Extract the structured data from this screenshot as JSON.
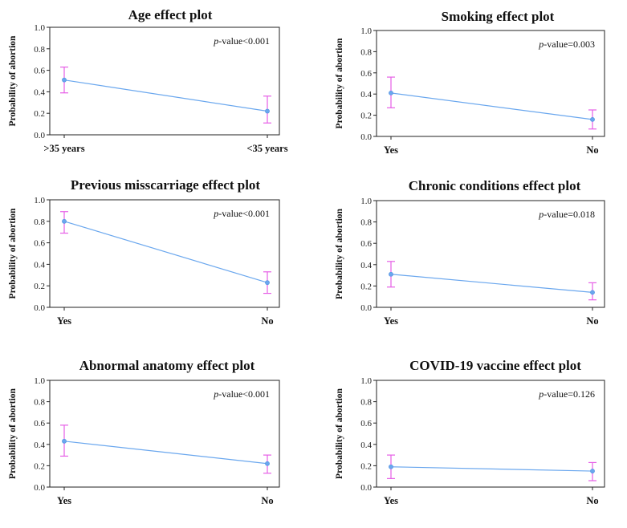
{
  "chart_data": [
    {
      "type": "line",
      "title": "Age effect plot",
      "ylabel": "Probability of abortion",
      "categories": [
        ">35 years",
        "<35 years"
      ],
      "values": [
        0.51,
        0.22
      ],
      "ci_lower": [
        0.39,
        0.11
      ],
      "ci_upper": [
        0.63,
        0.36
      ],
      "ylim": [
        0,
        1.0
      ],
      "yticks": [
        "0.0",
        "0.2",
        "0.4",
        "0.6",
        "0.8",
        "1.0"
      ],
      "pvalue_label": "p",
      "pvalue_text": "-value<0.001",
      "grid": false,
      "line_color": "#6aa7ee",
      "errorbar_color": "#e65ee6"
    },
    {
      "type": "line",
      "title": "Smoking effect plot",
      "ylabel": "Probability of abortion",
      "categories": [
        "Yes",
        "No"
      ],
      "values": [
        0.41,
        0.16
      ],
      "ci_lower": [
        0.27,
        0.07
      ],
      "ci_upper": [
        0.56,
        0.25
      ],
      "ylim": [
        0,
        1.0
      ],
      "yticks": [
        "0.0",
        "0.2",
        "0.4",
        "0.6",
        "0.8",
        "1.0"
      ],
      "pvalue_label": "p",
      "pvalue_text": "-value=0.003",
      "grid": false,
      "line_color": "#6aa7ee",
      "errorbar_color": "#e65ee6"
    },
    {
      "type": "line",
      "title": "Previous misscarriage effect plot",
      "ylabel": "Probability of abortion",
      "categories": [
        "Yes",
        "No"
      ],
      "values": [
        0.8,
        0.23
      ],
      "ci_lower": [
        0.69,
        0.13
      ],
      "ci_upper": [
        0.89,
        0.33
      ],
      "ylim": [
        0,
        1.0
      ],
      "yticks": [
        "0.0",
        "0.2",
        "0.4",
        "0.6",
        "0.8",
        "1.0"
      ],
      "pvalue_label": "p",
      "pvalue_text": "-value<0.001",
      "grid": false,
      "line_color": "#6aa7ee",
      "errorbar_color": "#e65ee6"
    },
    {
      "type": "line",
      "title": "Chronic conditions effect plot",
      "ylabel": "Probability of abortion",
      "categories": [
        "Yes",
        "No"
      ],
      "values": [
        0.31,
        0.14
      ],
      "ci_lower": [
        0.19,
        0.07
      ],
      "ci_upper": [
        0.43,
        0.23
      ],
      "ylim": [
        0,
        1.0
      ],
      "yticks": [
        "0.0",
        "0.2",
        "0.4",
        "0.6",
        "0.8",
        "1.0"
      ],
      "pvalue_label": "p",
      "pvalue_text": "-value=0.018",
      "grid": false,
      "line_color": "#6aa7ee",
      "errorbar_color": "#e65ee6"
    },
    {
      "type": "line",
      "title": "Abnormal anatomy effect plot",
      "ylabel": "Probability of abortion",
      "categories": [
        "Yes",
        "No"
      ],
      "values": [
        0.43,
        0.22
      ],
      "ci_lower": [
        0.29,
        0.13
      ],
      "ci_upper": [
        0.58,
        0.3
      ],
      "ylim": [
        0,
        1.0
      ],
      "yticks": [
        "0.0",
        "0.2",
        "0.4",
        "0.6",
        "0.8",
        "1.0"
      ],
      "pvalue_label": "p",
      "pvalue_text": "-value<0.001",
      "grid": false,
      "line_color": "#6aa7ee",
      "errorbar_color": "#e65ee6"
    },
    {
      "type": "line",
      "title": "COVID-19 vaccine effect plot",
      "ylabel": "Probability of abortion",
      "categories": [
        "Yes",
        "No"
      ],
      "values": [
        0.19,
        0.15
      ],
      "ci_lower": [
        0.08,
        0.06
      ],
      "ci_upper": [
        0.3,
        0.23
      ],
      "ylim": [
        0,
        1.0
      ],
      "yticks": [
        "0.0",
        "0.2",
        "0.4",
        "0.6",
        "0.8",
        "1.0"
      ],
      "pvalue_label": "p",
      "pvalue_text": "-value=0.126",
      "grid": false,
      "line_color": "#6aa7ee",
      "errorbar_color": "#e65ee6"
    }
  ]
}
